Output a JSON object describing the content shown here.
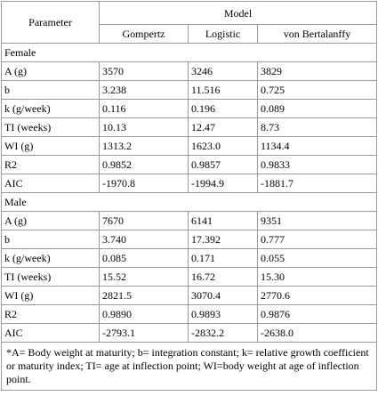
{
  "table": {
    "header": {
      "parameter": "Parameter",
      "model": "Model",
      "models": [
        "Gompertz",
        "Logistic",
        "von Bertalanffy"
      ]
    },
    "sections": [
      {
        "label": "Female",
        "rows": [
          [
            "A (g)",
            "3570",
            "3246",
            "3829"
          ],
          [
            "b",
            "3.238",
            "11.516",
            "0.725"
          ],
          [
            "k (g/week)",
            "0.116",
            "0.196",
            "0.089"
          ],
          [
            "TI (weeks)",
            "10.13",
            "12.47",
            "8.73"
          ],
          [
            "WI (g)",
            "1313.2",
            "1623.0",
            "1134.4"
          ],
          [
            "R2",
            "0.9852",
            "0.9857",
            "0.9833"
          ],
          [
            "AIC",
            "-1970.8",
            "-1994.9",
            "-1881.7"
          ]
        ]
      },
      {
        "label": "Male",
        "rows": [
          [
            "A (g)",
            "7670",
            "6141",
            "9351"
          ],
          [
            "b",
            "3.740",
            "17.392",
            "0.777"
          ],
          [
            "k (g/week)",
            "0.085",
            "0.171",
            "0.055"
          ],
          [
            "TI (weeks)",
            "15.52",
            "16.72",
            "15.30"
          ],
          [
            "WI (g)",
            "2821.5",
            "3070.4",
            "2770.6"
          ],
          [
            "R2",
            "0.9890",
            "0.9893",
            "0.9876"
          ],
          [
            "AIC",
            "-2793.1",
            "-2832.2",
            "-2638.0"
          ]
        ]
      }
    ],
    "footnote": "*A= Body weight at maturity; b= integration constant; k= relative growth coefficient or maturity index; TI= age at inflection point; WI=body weight at age of inflection point."
  }
}
